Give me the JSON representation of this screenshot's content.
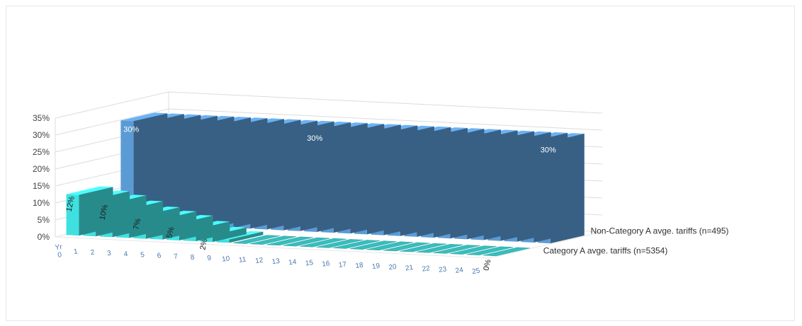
{
  "chart_data": {
    "type": "bar",
    "categories": [
      "Yr 0",
      "1",
      "2",
      "3",
      "4",
      "5",
      "6",
      "7",
      "8",
      "9",
      "10",
      "11",
      "12",
      "13",
      "14",
      "15",
      "16",
      "17",
      "18",
      "19",
      "20",
      "21",
      "22",
      "23",
      "24",
      "25"
    ],
    "series": [
      {
        "name": "Non-Category A avge. tariffs (n=495)",
        "values": [
          30,
          30,
          30,
          30,
          30,
          30,
          30,
          30,
          30,
          30,
          30,
          30,
          30,
          30,
          30,
          30,
          30,
          30,
          30,
          30,
          30,
          30,
          30,
          30,
          30,
          30
        ],
        "color": "#5b9bd5"
      },
      {
        "name": "Category A avge. tariffs (n=5354)",
        "values": [
          12,
          11,
          10,
          8.5,
          7,
          6,
          5,
          3.5,
          2,
          1,
          0,
          0,
          0,
          0,
          0,
          0,
          0,
          0,
          0,
          0,
          0,
          0,
          0,
          0,
          0,
          0
        ],
        "color": "#40e0e0"
      }
    ],
    "data_labels": [
      {
        "series": 0,
        "index": 0,
        "text": "30%"
      },
      {
        "series": 0,
        "index": 11,
        "text": "30%"
      },
      {
        "series": 0,
        "index": 25,
        "text": "30%"
      },
      {
        "series": 1,
        "index": 0,
        "text": "12%"
      },
      {
        "series": 1,
        "index": 2,
        "text": "10%"
      },
      {
        "series": 1,
        "index": 4,
        "text": "7%"
      },
      {
        "series": 1,
        "index": 6,
        "text": "5%"
      },
      {
        "series": 1,
        "index": 8,
        "text": "2%"
      },
      {
        "series": 1,
        "index": 25,
        "text": "0%"
      }
    ],
    "yticks": [
      "0%",
      "5%",
      "10%",
      "15%",
      "20%",
      "25%",
      "30%",
      "35%"
    ],
    "ylim": [
      0,
      35
    ],
    "grid": true,
    "legend": "series names on right side of depth axis"
  }
}
